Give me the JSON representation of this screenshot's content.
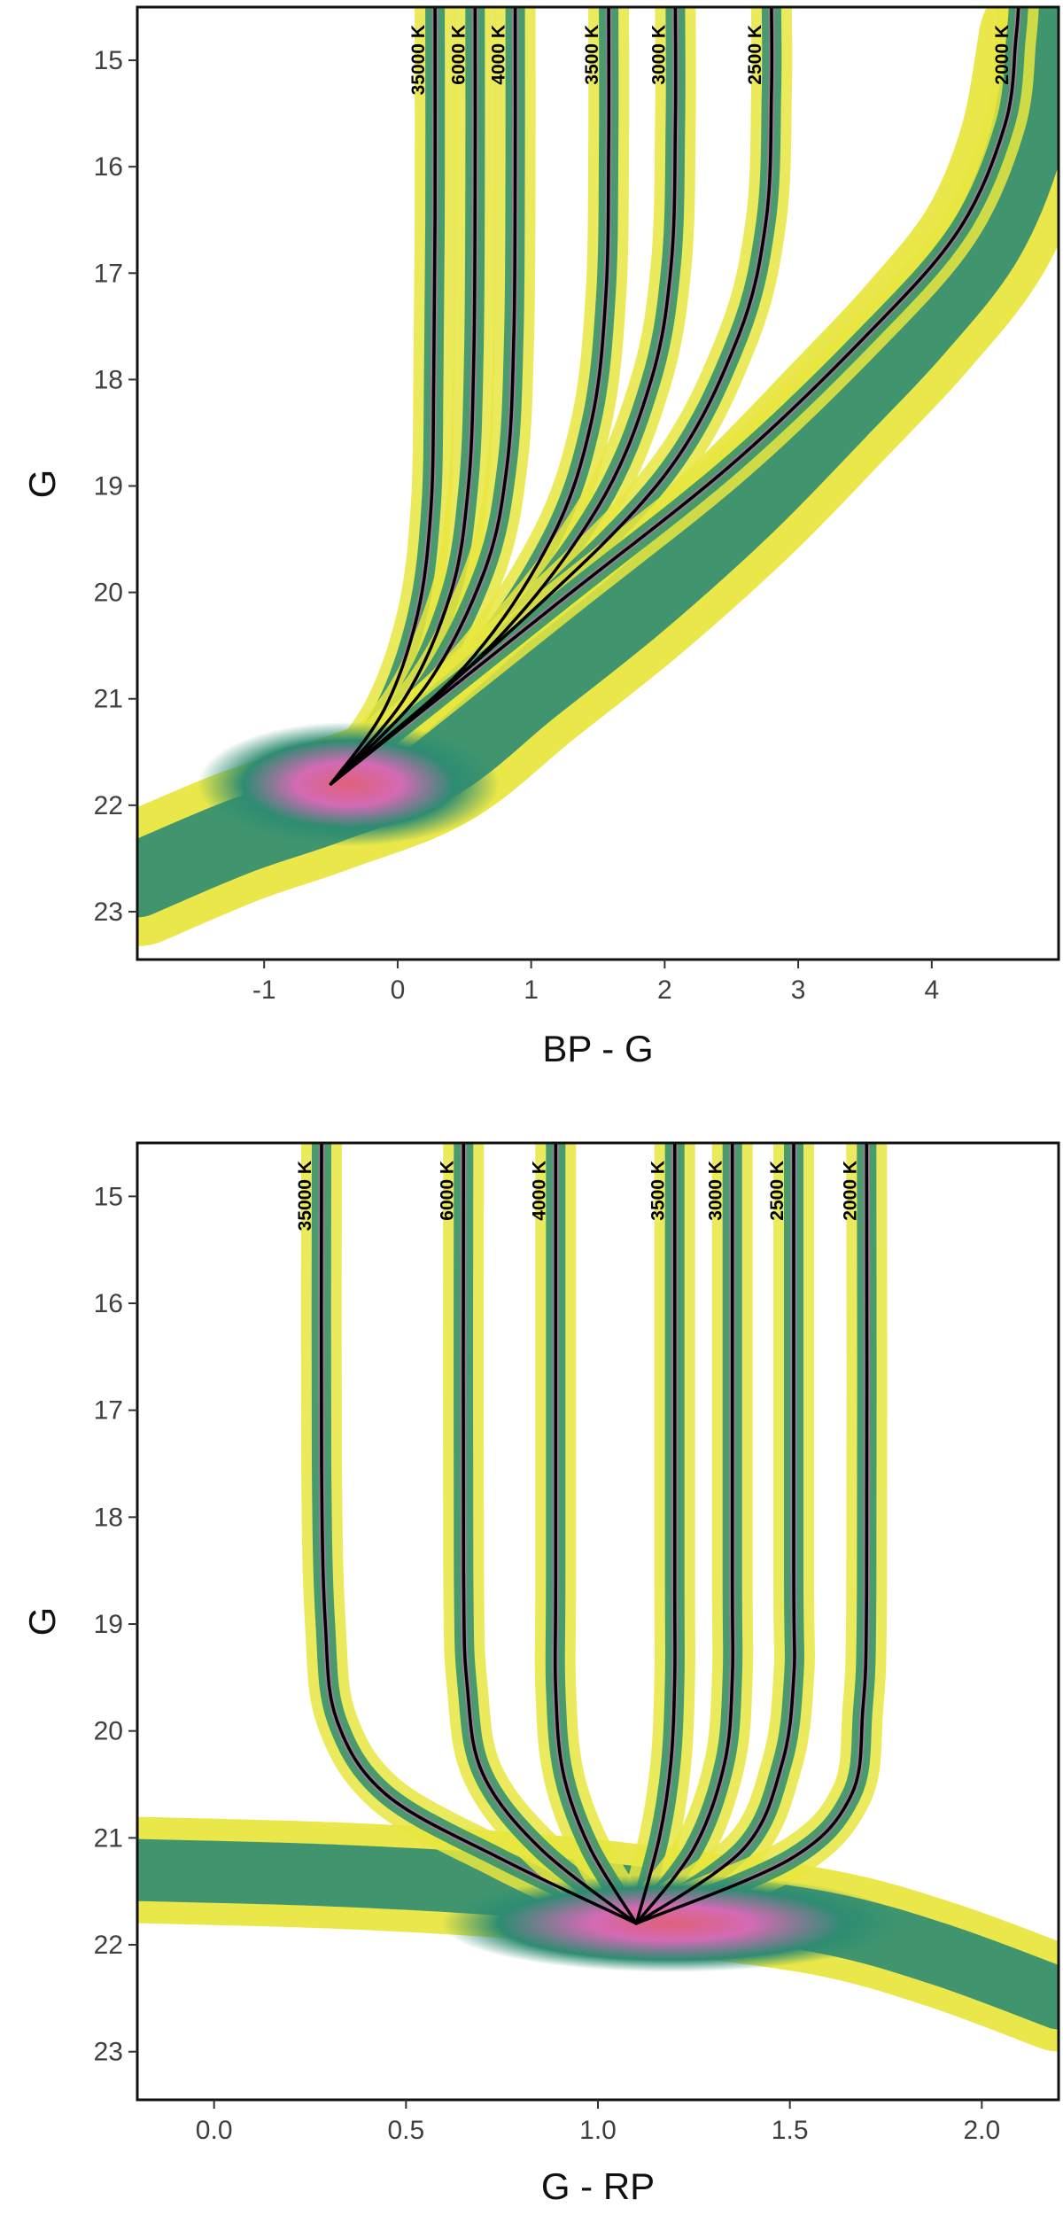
{
  "chart_data": [
    {
      "type": "scatter",
      "description_role": "hexbin density of simulated sources with temperature tracks",
      "xlabel": "BP - G",
      "ylabel": "G",
      "xlim": [
        -1.95,
        4.95
      ],
      "ylim": [
        23.45,
        14.5
      ],
      "x_ticks": [
        -1,
        0,
        1,
        2,
        3,
        4
      ],
      "x_tick_labels": [
        "-1",
        "0",
        "1",
        "2",
        "3",
        "4"
      ],
      "y_ticks": [
        15,
        16,
        17,
        18,
        19,
        20,
        21,
        22,
        23
      ],
      "y_tick_labels": [
        "15",
        "16",
        "17",
        "18",
        "19",
        "20",
        "21",
        "22",
        "23"
      ],
      "convergence_point": {
        "x": -0.5,
        "y": 21.8
      },
      "density_colors": {
        "low": "#e8e640",
        "mid": "#2e8c72",
        "high": "#d36ab4",
        "peak": "#e0607a"
      },
      "series": [
        {
          "name": "35000 K",
          "label": "35000 K",
          "asymptote_x": 0.28,
          "points": [
            [
              -0.5,
              21.8
            ],
            [
              -0.1,
              21.1
            ],
            [
              0.15,
              20.2
            ],
            [
              0.25,
              19.2
            ],
            [
              0.27,
              18.0
            ],
            [
              0.28,
              16.5
            ],
            [
              0.28,
              14.5
            ]
          ]
        },
        {
          "name": "6000 K",
          "label": "6000 K",
          "asymptote_x": 0.58,
          "points": [
            [
              -0.5,
              21.8
            ],
            [
              0.05,
              21.0
            ],
            [
              0.4,
              20.0
            ],
            [
              0.53,
              19.0
            ],
            [
              0.57,
              17.8
            ],
            [
              0.58,
              16.2
            ],
            [
              0.58,
              14.5
            ]
          ]
        },
        {
          "name": "4000 K",
          "label": "4000 K",
          "asymptote_x": 0.88,
          "points": [
            [
              -0.5,
              21.8
            ],
            [
              0.2,
              20.9
            ],
            [
              0.65,
              19.8
            ],
            [
              0.82,
              18.8
            ],
            [
              0.87,
              17.6
            ],
            [
              0.88,
              16.0
            ],
            [
              0.88,
              14.5
            ]
          ]
        },
        {
          "name": "3500 K",
          "label": "3500 K",
          "asymptote_x": 1.58,
          "points": [
            [
              -0.5,
              21.8
            ],
            [
              0.5,
              20.7
            ],
            [
              1.15,
              19.5
            ],
            [
              1.45,
              18.4
            ],
            [
              1.56,
              17.2
            ],
            [
              1.58,
              15.8
            ],
            [
              1.58,
              14.5
            ]
          ]
        },
        {
          "name": "3000 K",
          "label": "3000 K",
          "asymptote_x": 2.08,
          "points": [
            [
              -0.5,
              21.8
            ],
            [
              0.7,
              20.5
            ],
            [
              1.5,
              19.2
            ],
            [
              1.9,
              18.0
            ],
            [
              2.05,
              16.9
            ],
            [
              2.08,
              15.6
            ],
            [
              2.08,
              14.5
            ]
          ]
        },
        {
          "name": "2500 K",
          "label": "2500 K",
          "asymptote_x": 2.8,
          "points": [
            [
              -0.5,
              21.8
            ],
            [
              0.9,
              20.3
            ],
            [
              2.0,
              18.9
            ],
            [
              2.55,
              17.6
            ],
            [
              2.76,
              16.5
            ],
            [
              2.8,
              15.3
            ],
            [
              2.8,
              14.5
            ]
          ]
        },
        {
          "name": "2000 K",
          "label": "2000 K",
          "asymptote_x": 4.65,
          "points": [
            [
              -0.5,
              21.8
            ],
            [
              1.2,
              20.1
            ],
            [
              2.5,
              18.8
            ],
            [
              3.5,
              17.6
            ],
            [
              4.2,
              16.6
            ],
            [
              4.55,
              15.6
            ],
            [
              4.63,
              14.8
            ],
            [
              4.65,
              14.5
            ]
          ]
        }
      ]
    },
    {
      "type": "scatter",
      "description_role": "hexbin density of simulated sources with temperature tracks",
      "xlabel": "G - RP",
      "ylabel": "G",
      "xlim": [
        -0.2,
        2.2
      ],
      "ylim": [
        23.45,
        14.5
      ],
      "x_ticks": [
        0.0,
        0.5,
        1.0,
        1.5,
        2.0
      ],
      "x_tick_labels": [
        "0.0",
        "0.5",
        "1.0",
        "1.5",
        "2.0"
      ],
      "y_ticks": [
        15,
        16,
        17,
        18,
        19,
        20,
        21,
        22,
        23
      ],
      "y_tick_labels": [
        "15",
        "16",
        "17",
        "18",
        "19",
        "20",
        "21",
        "22",
        "23"
      ],
      "convergence_point": {
        "x": 1.1,
        "y": 21.8
      },
      "density_colors": {
        "low": "#e8e640",
        "mid": "#2e8c72",
        "high": "#d36ab4",
        "peak": "#e0607a"
      },
      "series": [
        {
          "name": "35000 K",
          "label": "35000 K",
          "asymptote_x": 0.28,
          "points": [
            [
              1.1,
              21.8
            ],
            [
              0.75,
              21.2
            ],
            [
              0.45,
              20.6
            ],
            [
              0.32,
              19.9
            ],
            [
              0.29,
              19.0
            ],
            [
              0.28,
              17.5
            ],
            [
              0.28,
              14.5
            ]
          ]
        },
        {
          "name": "6000 K",
          "label": "6000 K",
          "asymptote_x": 0.65,
          "points": [
            [
              1.1,
              21.8
            ],
            [
              0.85,
              21.1
            ],
            [
              0.7,
              20.4
            ],
            [
              0.66,
              19.6
            ],
            [
              0.65,
              18.5
            ],
            [
              0.65,
              14.5
            ]
          ]
        },
        {
          "name": "4000 K",
          "label": "4000 K",
          "asymptote_x": 0.89,
          "points": [
            [
              1.1,
              21.8
            ],
            [
              0.98,
              21.1
            ],
            [
              0.91,
              20.4
            ],
            [
              0.89,
              19.6
            ],
            [
              0.89,
              18.5
            ],
            [
              0.89,
              14.5
            ]
          ]
        },
        {
          "name": "3500 K",
          "label": "3500 K",
          "asymptote_x": 1.2,
          "points": [
            [
              1.1,
              21.8
            ],
            [
              1.16,
              21.0
            ],
            [
              1.19,
              20.3
            ],
            [
              1.2,
              19.5
            ],
            [
              1.2,
              18.5
            ],
            [
              1.2,
              14.5
            ]
          ]
        },
        {
          "name": "3000 K",
          "label": "3000 K",
          "asymptote_x": 1.35,
          "points": [
            [
              1.1,
              21.8
            ],
            [
              1.25,
              21.1
            ],
            [
              1.33,
              20.3
            ],
            [
              1.35,
              19.5
            ],
            [
              1.35,
              18.5
            ],
            [
              1.35,
              14.5
            ]
          ]
        },
        {
          "name": "2500 K",
          "label": "2500 K",
          "asymptote_x": 1.51,
          "points": [
            [
              1.1,
              21.8
            ],
            [
              1.38,
              21.1
            ],
            [
              1.48,
              20.3
            ],
            [
              1.51,
              19.5
            ],
            [
              1.51,
              18.5
            ],
            [
              1.51,
              14.5
            ]
          ]
        },
        {
          "name": "2000 K",
          "label": "2000 K",
          "asymptote_x": 1.7,
          "points": [
            [
              1.1,
              21.8
            ],
            [
              1.5,
              21.2
            ],
            [
              1.66,
              20.6
            ],
            [
              1.69,
              19.8
            ],
            [
              1.7,
              18.7
            ],
            [
              1.7,
              14.5
            ]
          ]
        }
      ]
    }
  ]
}
